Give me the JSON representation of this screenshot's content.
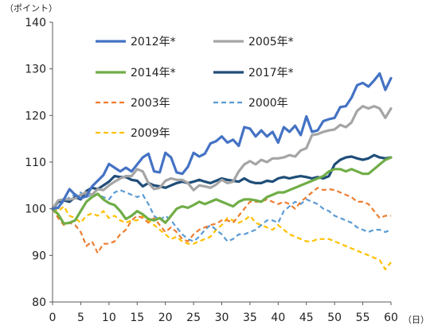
{
  "chart_data": {
    "type": "line",
    "yunit": "（ポイント）",
    "xunit": "（日）",
    "xlim": [
      0,
      60
    ],
    "ylim": [
      80,
      140
    ],
    "xticks": [
      0,
      5,
      10,
      15,
      20,
      25,
      30,
      35,
      40,
      45,
      50,
      55,
      60
    ],
    "yticks": [
      80,
      90,
      100,
      110,
      120,
      130,
      140
    ],
    "grid": false,
    "legend_position": "top-left, inside plot area",
    "series": [
      {
        "name": "2012年*",
        "color": "#4472C4",
        "dash": "solid",
        "width": 3.2,
        "x": [
          0,
          1,
          2,
          3,
          4,
          5,
          6,
          7,
          8,
          9,
          10,
          11,
          12,
          13,
          14,
          15,
          16,
          17,
          18,
          19,
          20,
          21,
          22,
          23,
          24,
          25,
          26,
          27,
          28,
          29,
          30,
          31,
          32,
          33,
          34,
          35,
          36,
          37,
          38,
          39,
          40,
          41,
          42,
          43,
          44,
          45,
          46,
          47,
          48,
          49,
          50,
          51,
          52,
          53,
          54,
          55,
          56,
          57,
          58,
          59,
          60
        ],
        "y": [
          100,
          100.2,
          102.0,
          104.2,
          103.0,
          102.2,
          102.7,
          104.8,
          106.0,
          107.2,
          109.6,
          108.8,
          108.0,
          108.8,
          108.0,
          109.5,
          111.0,
          111.8,
          108.0,
          107.8,
          112.0,
          111.0,
          107.8,
          107.5,
          109.0,
          112.0,
          111.2,
          111.8,
          114.0,
          114.5,
          115.5,
          114.2,
          114.8,
          113.5,
          117.5,
          117.2,
          115.5,
          116.8,
          115.5,
          116.5,
          114.2,
          117.5,
          116.5,
          117.8,
          115.8,
          119.8,
          116.5,
          116.8,
          118.8,
          119.2,
          119.5,
          121.8,
          122.0,
          123.8,
          126.5,
          127.0,
          126.2,
          127.5,
          129.0,
          125.5,
          128.0
        ]
      },
      {
        "name": "2005年*",
        "color": "#A5A5A5",
        "dash": "solid",
        "width": 3.2,
        "x": [
          0,
          1,
          2,
          3,
          4,
          5,
          6,
          7,
          8,
          9,
          10,
          11,
          12,
          13,
          14,
          15,
          16,
          17,
          18,
          19,
          20,
          21,
          22,
          23,
          24,
          25,
          26,
          27,
          28,
          29,
          30,
          31,
          32,
          33,
          34,
          35,
          36,
          37,
          38,
          39,
          40,
          41,
          42,
          43,
          44,
          45,
          46,
          47,
          48,
          49,
          50,
          51,
          52,
          53,
          54,
          55,
          56,
          57,
          58,
          59,
          60
        ],
        "y": [
          100,
          101.8,
          102.0,
          102.0,
          102.2,
          103.0,
          103.5,
          103.0,
          104.2,
          104.0,
          105.0,
          105.8,
          106.5,
          107.0,
          107.0,
          108.5,
          108.0,
          105.5,
          104.2,
          104.5,
          106.0,
          106.5,
          106.2,
          106.2,
          105.5,
          104.0,
          105.0,
          104.8,
          104.5,
          105.2,
          106.2,
          105.5,
          105.8,
          108.0,
          109.5,
          110.2,
          109.5,
          110.5,
          110.0,
          110.8,
          110.8,
          111.0,
          111.5,
          111.2,
          112.5,
          113.0,
          115.8,
          116.0,
          116.5,
          116.8,
          117.0,
          118.0,
          117.5,
          118.5,
          121.0,
          122.0,
          121.5,
          122.0,
          121.5,
          119.5,
          121.5
        ]
      },
      {
        "name": "2014年*",
        "color": "#70AD47",
        "dash": "solid",
        "width": 3.2,
        "x": [
          0,
          1,
          2,
          3,
          4,
          5,
          6,
          7,
          8,
          9,
          10,
          11,
          12,
          13,
          14,
          15,
          16,
          17,
          18,
          19,
          20,
          21,
          22,
          23,
          24,
          25,
          26,
          27,
          28,
          29,
          30,
          31,
          32,
          33,
          34,
          35,
          36,
          37,
          38,
          39,
          40,
          41,
          42,
          43,
          44,
          45,
          46,
          47,
          48,
          49,
          50,
          51,
          52,
          53,
          54,
          55,
          56,
          57,
          58,
          59,
          60
        ],
        "y": [
          100,
          98.8,
          96.8,
          97.0,
          97.5,
          99.5,
          101.5,
          102.5,
          103.2,
          102.0,
          101.2,
          100.8,
          99.5,
          97.8,
          98.5,
          99.5,
          98.8,
          97.8,
          97.5,
          98.0,
          97.0,
          98.5,
          100.0,
          100.5,
          100.2,
          100.8,
          101.5,
          101.0,
          101.5,
          102.0,
          101.5,
          101.0,
          100.5,
          101.5,
          102.0,
          102.0,
          101.8,
          101.5,
          102.5,
          103.0,
          103.5,
          103.5,
          104.0,
          104.5,
          105.0,
          105.5,
          106.0,
          106.5,
          107.0,
          108.0,
          108.5,
          108.5,
          108.0,
          108.5,
          108.0,
          107.5,
          107.5,
          108.5,
          109.5,
          110.5,
          111.0
        ]
      },
      {
        "name": "2017年*",
        "color": "#1F4E79",
        "dash": "solid",
        "width": 3.2,
        "x": [
          0,
          1,
          2,
          3,
          4,
          5,
          6,
          7,
          8,
          9,
          10,
          11,
          12,
          13,
          14,
          15,
          16,
          17,
          18,
          19,
          20,
          21,
          22,
          23,
          24,
          25,
          26,
          27,
          28,
          29,
          30,
          31,
          32,
          33,
          34,
          35,
          36,
          37,
          38,
          39,
          40,
          41,
          42,
          43,
          44,
          45,
          46,
          47,
          48,
          49,
          50,
          51,
          52,
          53,
          54,
          55,
          56,
          57,
          58,
          59,
          60
        ],
        "y": [
          100,
          101.5,
          101.8,
          101.5,
          102.5,
          102.0,
          103.8,
          104.5,
          104.2,
          105.0,
          105.8,
          107.0,
          106.8,
          106.8,
          106.2,
          106.0,
          104.8,
          105.5,
          105.0,
          104.8,
          104.5,
          105.0,
          105.5,
          105.8,
          105.5,
          105.8,
          106.2,
          105.8,
          105.5,
          106.0,
          106.5,
          106.2,
          106.0,
          105.8,
          106.5,
          105.8,
          105.5,
          105.5,
          106.0,
          105.8,
          106.5,
          106.8,
          106.5,
          106.8,
          107.0,
          106.8,
          106.5,
          106.8,
          106.5,
          107.0,
          109.5,
          110.5,
          111.0,
          111.2,
          110.8,
          110.5,
          110.8,
          111.5,
          111.0,
          110.8,
          111.0
        ]
      },
      {
        "name": "2003年",
        "color": "#ED7D31",
        "dash": "6,4",
        "width": 2.2,
        "x": [
          0,
          1,
          2,
          3,
          4,
          5,
          6,
          7,
          8,
          9,
          10,
          11,
          12,
          13,
          14,
          15,
          16,
          17,
          18,
          19,
          20,
          21,
          22,
          23,
          24,
          25,
          26,
          27,
          28,
          29,
          30,
          31,
          32,
          33,
          34,
          35,
          36,
          37,
          38,
          39,
          40,
          41,
          42,
          43,
          44,
          45,
          46,
          47,
          48,
          49,
          50,
          51,
          52,
          53,
          54,
          55,
          56,
          57,
          58,
          59,
          60
        ],
        "y": [
          100,
          98.0,
          96.5,
          97.0,
          96.5,
          95.0,
          92.0,
          93.0,
          90.5,
          92.5,
          92.5,
          93.0,
          94.5,
          95.5,
          97.5,
          98.5,
          98.0,
          97.0,
          98.0,
          96.5,
          95.0,
          96.0,
          95.0,
          93.5,
          93.0,
          94.5,
          95.5,
          96.0,
          96.5,
          96.8,
          97.5,
          97.5,
          97.0,
          98.5,
          100.0,
          101.5,
          101.5,
          101.5,
          102.0,
          101.5,
          101.0,
          101.5,
          101.0,
          100.0,
          101.5,
          102.5,
          103.5,
          104.5,
          104.0,
          104.2,
          104.0,
          103.5,
          103.0,
          102.5,
          101.5,
          101.5,
          101.0,
          99.5,
          98.0,
          98.5,
          98.5
        ]
      },
      {
        "name": "2000年",
        "color": "#5B9BD5",
        "dash": "6,4",
        "width": 2.2,
        "x": [
          0,
          1,
          2,
          3,
          4,
          5,
          6,
          7,
          8,
          9,
          10,
          11,
          12,
          13,
          14,
          15,
          16,
          17,
          18,
          19,
          20,
          21,
          22,
          23,
          24,
          25,
          26,
          27,
          28,
          29,
          30,
          31,
          32,
          33,
          34,
          35,
          36,
          37,
          38,
          39,
          40,
          41,
          42,
          43,
          44,
          45,
          46,
          47,
          48,
          49,
          50,
          51,
          52,
          53,
          54,
          55,
          56,
          57,
          58,
          59,
          60
        ],
        "y": [
          100,
          100.5,
          101.5,
          102.5,
          103.0,
          103.5,
          102.5,
          103.0,
          103.0,
          102.5,
          102.0,
          103.5,
          104.0,
          103.5,
          103.0,
          102.5,
          103.0,
          101.0,
          98.5,
          97.5,
          98.5,
          97.5,
          96.0,
          94.5,
          93.5,
          93.0,
          94.0,
          95.5,
          96.5,
          95.5,
          94.5,
          93.0,
          93.5,
          94.5,
          94.5,
          95.0,
          95.5,
          96.5,
          97.5,
          97.5,
          97.0,
          99.5,
          100.5,
          101.5,
          101.0,
          102.0,
          101.5,
          101.0,
          100.0,
          99.5,
          98.5,
          98.0,
          97.5,
          97.0,
          96.0,
          95.5,
          95.0,
          95.5,
          95.5,
          95.0,
          95.5
        ]
      },
      {
        "name": "2009年",
        "color": "#FFC000",
        "dash": "6,4",
        "width": 2.2,
        "x": [
          0,
          1,
          2,
          3,
          4,
          5,
          6,
          7,
          8,
          9,
          10,
          11,
          12,
          13,
          14,
          15,
          16,
          17,
          18,
          19,
          20,
          21,
          22,
          23,
          24,
          25,
          26,
          27,
          28,
          29,
          30,
          31,
          32,
          33,
          34,
          35,
          36,
          37,
          38,
          39,
          40,
          41,
          42,
          43,
          44,
          45,
          46,
          47,
          48,
          49,
          50,
          51,
          52,
          53,
          54,
          55,
          56,
          57,
          58,
          59,
          60
        ],
        "y": [
          100,
          99.5,
          100.5,
          98.5,
          98.0,
          97.0,
          98.5,
          99.0,
          98.5,
          99.5,
          98.0,
          98.5,
          97.5,
          97.0,
          97.5,
          97.5,
          98.5,
          97.5,
          96.5,
          95.5,
          94.5,
          93.5,
          94.0,
          93.0,
          92.5,
          92.5,
          93.0,
          93.5,
          94.0,
          95.5,
          96.5,
          98.0,
          97.5,
          97.0,
          97.5,
          98.5,
          97.0,
          96.5,
          96.0,
          95.5,
          96.5,
          95.5,
          94.5,
          94.0,
          93.5,
          93.0,
          93.0,
          93.5,
          93.5,
          93.5,
          93.0,
          92.5,
          92.0,
          91.5,
          91.0,
          90.5,
          90.0,
          89.5,
          89.0,
          87.0,
          88.5
        ]
      }
    ]
  }
}
